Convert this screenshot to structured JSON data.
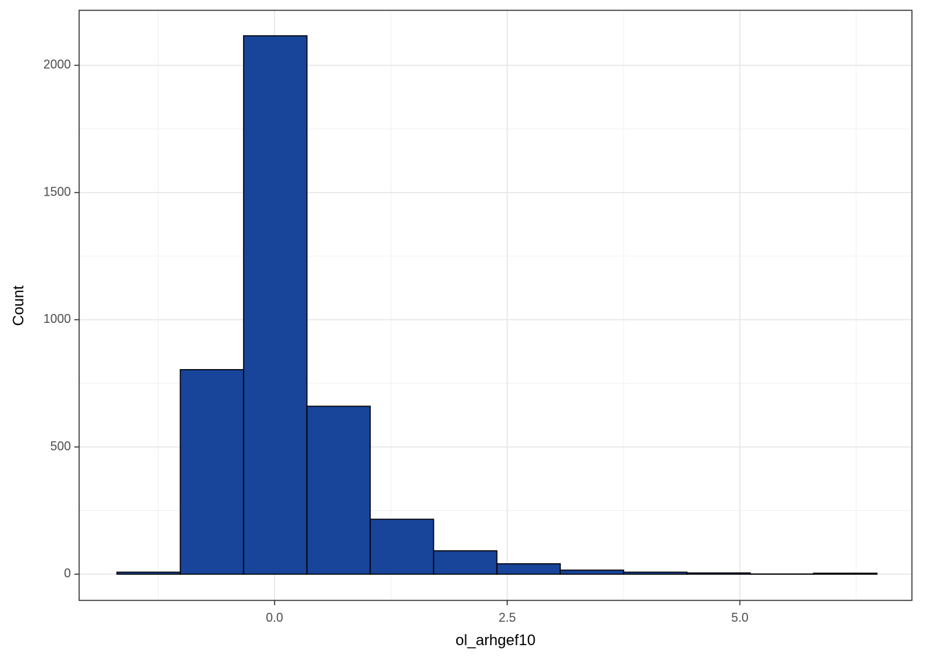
{
  "chart_data": {
    "type": "histogram",
    "x_label": "ol_arhgef10",
    "y_label": "Count",
    "bins": [
      -1.694,
      -1.013,
      -0.333,
      0.348,
      1.028,
      1.709,
      2.389,
      3.07,
      3.751,
      4.431,
      5.112,
      5.792,
      6.473
    ],
    "counts": [
      8,
      804,
      2116,
      660,
      216,
      92,
      41,
      16,
      8,
      5,
      1,
      4
    ],
    "color": "#18449a",
    "edge_color": "#000000",
    "xlim": [
      -2.1,
      6.849
    ],
    "ylim": [
      -103,
      2216
    ],
    "xticks": [
      {
        "value": 0,
        "label": "0.0"
      },
      {
        "value": 2.5,
        "label": "2.5"
      },
      {
        "value": 5,
        "label": "5.0"
      }
    ],
    "xminor": [
      -1.25,
      1.25,
      3.75,
      6.25
    ],
    "yticks": [
      0,
      500,
      1000,
      1500,
      2000
    ],
    "yminor": [
      250,
      750,
      1250,
      1750
    ],
    "grid": true
  }
}
